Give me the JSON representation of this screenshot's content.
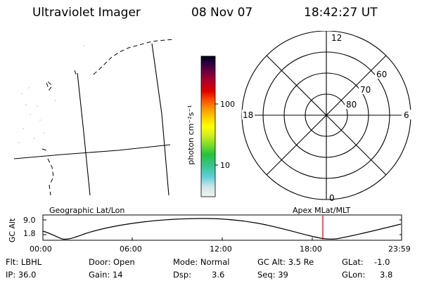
{
  "header": {
    "instrument": "Ultraviolet Imager",
    "date": "08 Nov 07",
    "time": "18:42:27 UT"
  },
  "colorbar": {
    "label": "photon cm⁻²s⁻¹",
    "ticks": [
      "100",
      "10"
    ],
    "scale": "log",
    "colors": [
      "#f2f2f2",
      "#cfe6ea",
      "#5fd0d8",
      "#39c58a",
      "#26c23a",
      "#7fdc26",
      "#d6ee1e",
      "#ffff00",
      "#ffd000",
      "#ff9a00",
      "#ff4a00",
      "#e00000",
      "#b0002a",
      "#6b0040",
      "#2a0040",
      "#000010"
    ]
  },
  "polar": {
    "mlt_labels": [
      "12",
      "6",
      "0",
      "18"
    ],
    "lat_labels": [
      "60",
      "70",
      "80"
    ]
  },
  "timeline": {
    "y_title": "GC Alt",
    "y_ticks": [
      "9.0",
      "1.8"
    ],
    "left_title": "Geographic Lat/Lon",
    "right_title": "Apex MLat/MLT",
    "x_ticks": [
      "00:00",
      "06:00",
      "12:00",
      "18:00",
      "23:59"
    ],
    "marker_time": "18:42",
    "marker_color": "#cc0000"
  },
  "footer": {
    "flt": "Flt: LBHL",
    "ip": "IP: 36.0",
    "door": "Door: Open",
    "gain": "Gain: 14",
    "mode": "Mode: Normal",
    "dsp_label": "Dsp:",
    "dsp_value": "3.6",
    "gc_alt": "GC Alt: 3.5 Re",
    "seq": "Seq: 39",
    "glat_label": "GLat:",
    "glat_value": "-1.0",
    "glon_label": "GLon:",
    "glon_value": "3.8"
  }
}
